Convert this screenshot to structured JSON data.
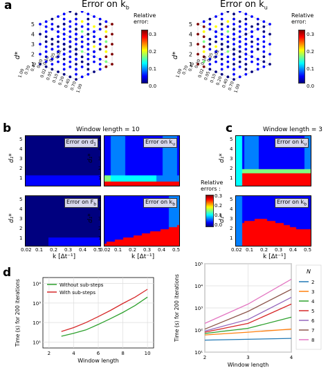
{
  "colormap": [
    "#00007f",
    "#0000ff",
    "#0080ff",
    "#00ffff",
    "#80ff80",
    "#ffff00",
    "#ff8000",
    "#ff0000",
    "#7f0000"
  ],
  "panel_a": {
    "label": "a",
    "left": {
      "title": "Error on k",
      "sub": "b"
    },
    "right": {
      "title": "Error on k",
      "sub": "u"
    },
    "colorbar": {
      "title": "Relative\nerror:",
      "ticks": [
        "0.3",
        "0.2",
        "0.1",
        "0.0"
      ]
    },
    "zticks": [
      "5",
      "4",
      "3",
      "2",
      "1"
    ],
    "xticks_left": [
      "1.00",
      "0.70",
      "0.40",
      "0.20",
      "0.10",
      "0.05",
      "0.02"
    ],
    "yticks_left": [
      "0.02",
      "0.05",
      "0.10",
      "0.20",
      "0.40",
      "0.70",
      "1.00"
    ]
  },
  "panel_b": {
    "label": "b",
    "header": "Window length = 10"
  },
  "panel_c": {
    "label": "c",
    "header": "Window length = 3"
  },
  "heatmaps": {
    "titles": [
      "Error on d",
      "Error on k",
      "Error on F",
      "Error on k",
      "Error on k",
      "Error on k"
    ],
    "subs": [
      "1",
      "u",
      "b",
      "b",
      "u",
      "b"
    ],
    "yticks": [
      "5",
      "4",
      "3",
      "2",
      "1"
    ],
    "xticks": [
      "0.02",
      "0.1",
      "0.2",
      "0.3",
      "0.4",
      "0.5"
    ],
    "xlabel_b": "k [Δt⁻¹]",
    "xlabel_c": "k [Δt⁻¹]"
  },
  "colorbar_b": {
    "title": "Relative\nerrors :",
    "ticks": [
      "0.3",
      "0.2",
      "0.1",
      "0.0"
    ]
  },
  "panel_d": {
    "label": "d"
  },
  "chart_data": [
    {
      "type": "line",
      "title": "",
      "xlabel": "Window length",
      "ylabel": "Time (s) for 200 iterations",
      "yscale": "log",
      "xlim": [
        1.5,
        10.5
      ],
      "ylim": [
        5,
        20000
      ],
      "xticks": [
        2,
        4,
        6,
        8,
        10
      ],
      "yticks": [
        "10¹",
        "10²",
        "10³",
        "10⁴"
      ],
      "grid": true,
      "legend": "top-left",
      "series": [
        {
          "name": "Without sub-steps",
          "color": "#2ca02c",
          "x": [
            3,
            4,
            5,
            6,
            7,
            8,
            9,
            10
          ],
          "y": [
            20,
            28,
            42,
            80,
            160,
            330,
            750,
            2000
          ]
        },
        {
          "name": "With sub-steps",
          "color": "#d62728",
          "x": [
            3,
            4,
            5,
            6,
            7,
            8,
            9,
            10
          ],
          "y": [
            35,
            55,
            100,
            200,
            420,
            950,
            2000,
            5000
          ]
        }
      ]
    },
    {
      "type": "line",
      "title": "",
      "xlabel": "Window length",
      "ylabel": "Time (s) for 200 iterations",
      "yscale": "log",
      "xlim": [
        2,
        4
      ],
      "ylim": [
        10,
        100000
      ],
      "xticks": [
        2,
        3,
        4
      ],
      "yticks": [
        "10¹",
        "10²",
        "10³",
        "10⁴",
        "10⁵"
      ],
      "grid": true,
      "legend_title": "N",
      "legend": "right",
      "series": [
        {
          "name": "2",
          "color": "#1f77b4",
          "x": [
            2,
            3,
            4
          ],
          "y": [
            35,
            38,
            42
          ]
        },
        {
          "name": "3",
          "color": "#ff7f0e",
          "x": [
            2,
            3,
            4
          ],
          "y": [
            60,
            80,
            110
          ]
        },
        {
          "name": "4",
          "color": "#2ca02c",
          "x": [
            2,
            3,
            4
          ],
          "y": [
            70,
            120,
            380
          ]
        },
        {
          "name": "5",
          "color": "#d62728",
          "x": [
            2,
            3,
            4
          ],
          "y": [
            80,
            200,
            1500
          ]
        },
        {
          "name": "6",
          "color": "#9467bd",
          "x": [
            2,
            3,
            4
          ],
          "y": [
            90,
            300,
            3000
          ]
        },
        {
          "name": "7",
          "color": "#8c564b",
          "x": [
            2,
            3,
            4
          ],
          "y": [
            110,
            700,
            7000
          ]
        },
        {
          "name": "8",
          "color": "#e377c2",
          "x": [
            2,
            3,
            4
          ],
          "y": [
            200,
            1500,
            20000
          ]
        }
      ]
    }
  ]
}
